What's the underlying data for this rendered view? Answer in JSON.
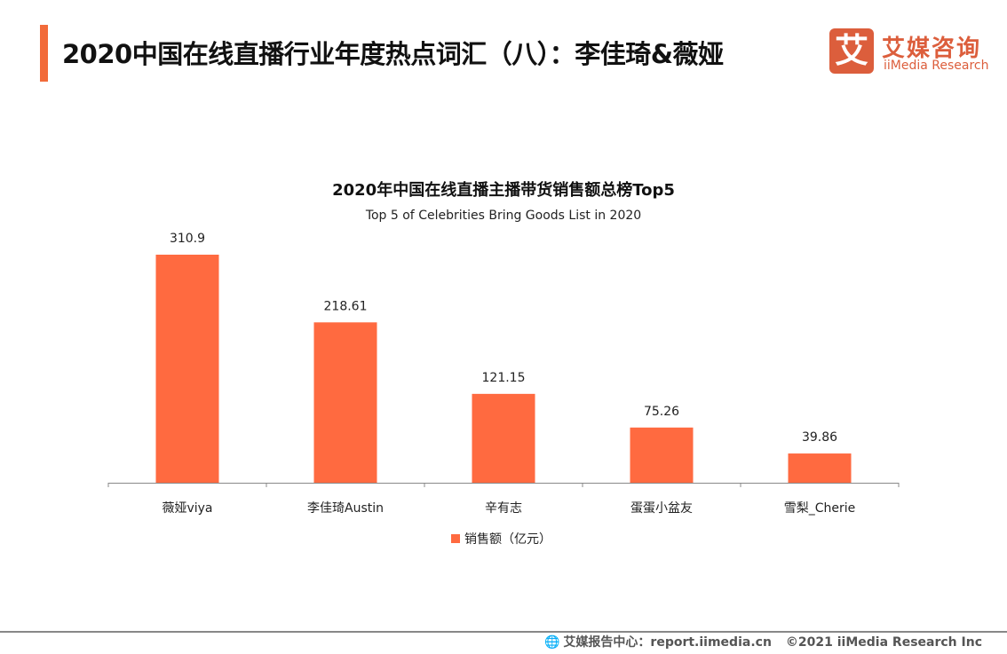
{
  "header": {
    "title": "2020中国在线直播行业年度热点词汇（八）：李佳琦&薇娅",
    "accent_color": "#f26b3a"
  },
  "logo": {
    "mark": "艾",
    "name_cn": "艾媒咨询",
    "name_en": "iiMedia Research",
    "color": "#dc5e3c"
  },
  "chart_data": {
    "type": "bar",
    "title": "2020年中国在线直播主播带货销售额总榜Top5",
    "subtitle": "Top 5 of Celebrities Bring Goods List in 2020",
    "categories": [
      "薇娅viya",
      "李佳琦Austin",
      "辛有志",
      "蛋蛋小盆友",
      "雪梨_Cherie"
    ],
    "series": [
      {
        "name": "销售额（亿元）",
        "values": [
          310.9,
          218.61,
          121.15,
          75.26,
          39.86
        ],
        "labels": [
          "310.9",
          "218.61",
          "121.15",
          "75.26",
          "39.86"
        ],
        "color": "#ff6a40"
      }
    ],
    "ylim": [
      0,
      310.9
    ],
    "grid": false,
    "legend": "bottom"
  },
  "footer": {
    "source": "艾媒报告中心：report.iimedia.cn",
    "copyright": "©2021  iiMedia Research  Inc",
    "icon": "globe-cursor-icon"
  }
}
